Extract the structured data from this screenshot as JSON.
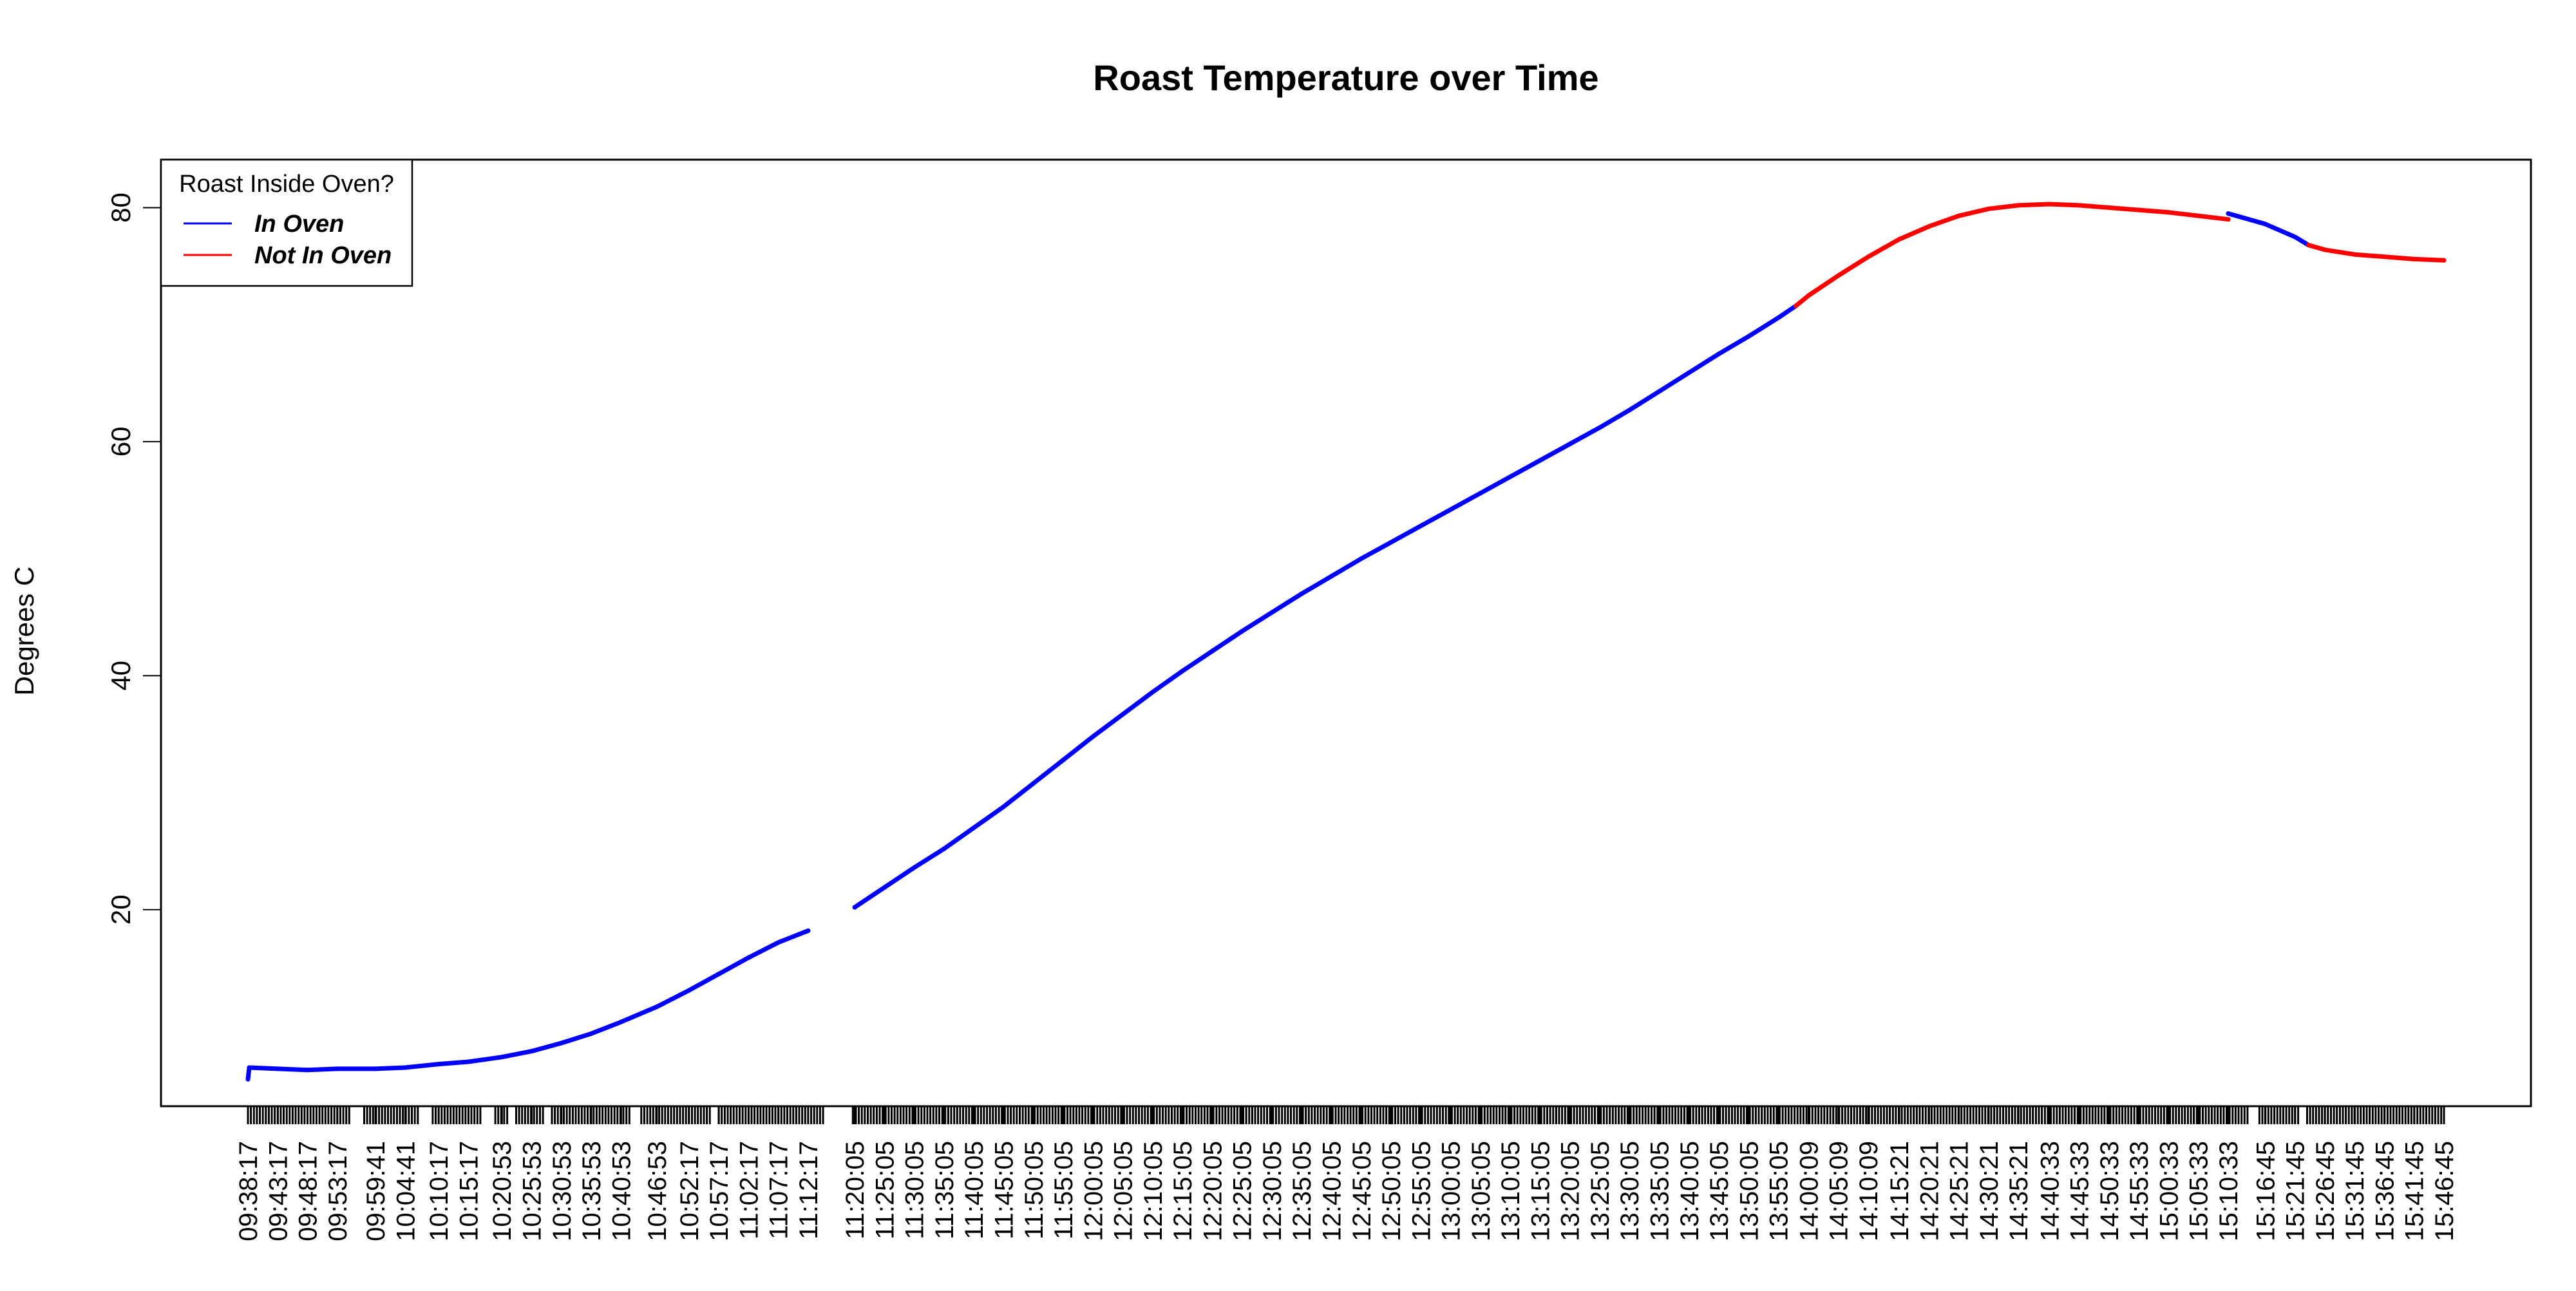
{
  "chart_data": {
    "type": "line",
    "title": "Roast Temperature over Time",
    "xlabel": "",
    "ylabel": "Degrees C",
    "ylim": [
      3.2,
      84.1
    ],
    "y_ticks": [
      20,
      40,
      60,
      80
    ],
    "grid": false,
    "legend": {
      "title": "Roast Inside Oven?",
      "position": "top-left",
      "entries": [
        {
          "label": "In Oven",
          "color": "#0000ff"
        },
        {
          "label": "Not In Oven",
          "color": "#ff0000"
        }
      ]
    },
    "x_tick_labels": [
      "09:38:17",
      "09:43:17",
      "09:48:17",
      "09:53:17",
      "09:59:41",
      "10:04:41",
      "10:10:17",
      "10:15:17",
      "10:20:53",
      "10:25:53",
      "10:30:53",
      "10:35:53",
      "10:40:53",
      "10:46:53",
      "10:52:17",
      "10:57:17",
      "11:02:17",
      "11:07:17",
      "11:12:17",
      "11:20:05",
      "11:25:05",
      "11:30:05",
      "11:35:05",
      "11:40:05",
      "11:45:05",
      "11:50:05",
      "11:55:05",
      "12:00:05",
      "12:05:05",
      "12:10:05",
      "12:15:05",
      "12:20:05",
      "12:25:05",
      "12:30:05",
      "12:35:05",
      "12:40:05",
      "12:45:05",
      "12:50:05",
      "12:55:05",
      "13:00:05",
      "13:05:05",
      "13:10:05",
      "13:15:05",
      "13:20:05",
      "13:25:05",
      "13:30:05",
      "13:35:05",
      "13:40:05",
      "13:45:05",
      "13:50:05",
      "13:55:05",
      "14:00:09",
      "14:05:09",
      "14:10:09",
      "14:15:21",
      "14:20:21",
      "14:25:21",
      "14:30:21",
      "14:35:21",
      "14:40:33",
      "14:45:33",
      "14:50:33",
      "14:55:33",
      "15:00:33",
      "15:05:33",
      "15:10:33",
      "15:16:45",
      "15:21:45",
      "15:26:45",
      "15:31:45",
      "15:36:45",
      "15:41:45",
      "15:46:45"
    ],
    "x_range": [
      "09:38:17",
      "15:46:45"
    ],
    "series": [
      {
        "name": "In Oven",
        "color": "#0000ff",
        "segments": [
          [
            [
              "09:38:17",
              5.5
            ],
            [
              "09:38:30",
              6.5
            ],
            [
              "09:43:17",
              6.4
            ],
            [
              "09:48:17",
              6.3
            ],
            [
              "09:53:17",
              6.4
            ],
            [
              "09:59:41",
              6.4
            ],
            [
              "10:04:41",
              6.5
            ],
            [
              "10:10:17",
              6.8
            ],
            [
              "10:15:17",
              7.0
            ],
            [
              "10:20:53",
              7.4
            ],
            [
              "10:25:53",
              7.9
            ],
            [
              "10:30:53",
              8.6
            ],
            [
              "10:35:53",
              9.4
            ],
            [
              "10:40:53",
              10.4
            ],
            [
              "10:46:53",
              11.7
            ],
            [
              "10:52:17",
              13.1
            ],
            [
              "10:57:17",
              14.5
            ],
            [
              "11:02:17",
              15.9
            ],
            [
              "11:07:17",
              17.2
            ],
            [
              "11:12:17",
              18.2
            ]
          ],
          [
            [
              "11:20:05",
              20.2
            ],
            [
              "11:25:05",
              21.9
            ],
            [
              "11:30:05",
              23.6
            ],
            [
              "11:35:05",
              25.2
            ],
            [
              "11:40:05",
              27.0
            ],
            [
              "11:45:05",
              28.8
            ],
            [
              "11:50:05",
              30.8
            ],
            [
              "11:55:05",
              32.8
            ],
            [
              "12:00:05",
              34.8
            ],
            [
              "12:05:05",
              36.7
            ],
            [
              "12:10:05",
              38.6
            ],
            [
              "12:15:05",
              40.4
            ],
            [
              "12:20:05",
              42.1
            ],
            [
              "12:25:05",
              43.8
            ],
            [
              "12:30:05",
              45.4
            ],
            [
              "12:35:05",
              47.0
            ],
            [
              "12:40:05",
              48.5
            ],
            [
              "12:45:05",
              50.0
            ],
            [
              "12:50:05",
              51.4
            ],
            [
              "12:55:05",
              52.8
            ],
            [
              "13:00:05",
              54.2
            ],
            [
              "13:05:05",
              55.6
            ],
            [
              "13:10:05",
              57.0
            ],
            [
              "13:15:05",
              58.4
            ],
            [
              "13:20:05",
              59.8
            ],
            [
              "13:25:05",
              61.2
            ],
            [
              "13:30:05",
              62.7
            ],
            [
              "13:35:05",
              64.3
            ],
            [
              "13:40:05",
              65.9
            ],
            [
              "13:45:05",
              67.5
            ],
            [
              "13:50:05",
              69.0
            ],
            [
              "13:55:05",
              70.6
            ],
            [
              "13:58:00",
              71.6
            ]
          ],
          [
            [
              "15:10:33",
              79.5
            ],
            [
              "15:16:45",
              78.6
            ],
            [
              "15:21:45",
              77.5
            ],
            [
              "15:24:00",
              76.8
            ]
          ]
        ]
      },
      {
        "name": "Not In Oven",
        "color": "#ff0000",
        "segments": [
          [
            [
              "13:58:00",
              71.6
            ],
            [
              "14:00:09",
              72.5
            ],
            [
              "14:05:09",
              74.2
            ],
            [
              "14:10:09",
              75.8
            ],
            [
              "14:15:21",
              77.3
            ],
            [
              "14:20:21",
              78.4
            ],
            [
              "14:25:21",
              79.3
            ],
            [
              "14:30:21",
              79.9
            ],
            [
              "14:35:21",
              80.2
            ],
            [
              "14:40:33",
              80.3
            ],
            [
              "14:45:33",
              80.2
            ],
            [
              "14:50:33",
              80.0
            ],
            [
              "14:55:33",
              79.8
            ],
            [
              "15:00:33",
              79.6
            ],
            [
              "15:05:33",
              79.3
            ],
            [
              "15:10:33",
              79.0
            ]
          ],
          [
            [
              "15:24:00",
              76.8
            ],
            [
              "15:26:45",
              76.4
            ],
            [
              "15:31:45",
              76.0
            ],
            [
              "15:36:45",
              75.8
            ],
            [
              "15:41:45",
              75.6
            ],
            [
              "15:46:45",
              75.5
            ]
          ]
        ]
      }
    ]
  }
}
